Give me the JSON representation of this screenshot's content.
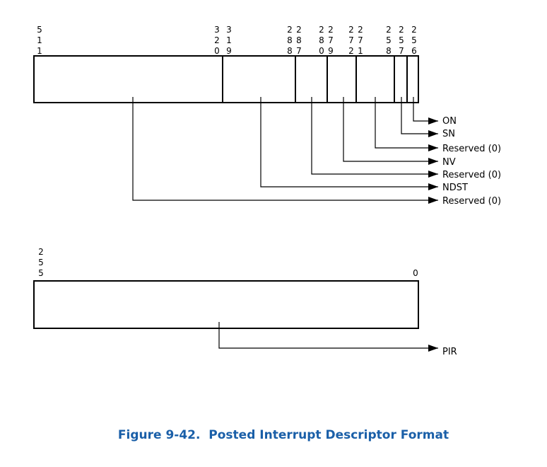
{
  "upper_register": {
    "bit_labels": [
      "511",
      "320",
      "319",
      "288",
      "287",
      "280",
      "279",
      "272",
      "271",
      "258",
      "257",
      "256"
    ],
    "fields": [
      {
        "name": "ON"
      },
      {
        "name": "SN"
      },
      {
        "name": "Reserved (0)"
      },
      {
        "name": "NV"
      },
      {
        "name": "Reserved (0)"
      },
      {
        "name": "NDST"
      },
      {
        "name": "Reserved (0)"
      }
    ]
  },
  "lower_register": {
    "bit_labels": [
      "255",
      "0"
    ],
    "fields": [
      {
        "name": "PIR"
      }
    ]
  },
  "caption": "Figure 9-42.  Posted Interrupt Descriptor Format",
  "colors": {
    "line": "#000000",
    "caption": "#1a5fa8"
  }
}
